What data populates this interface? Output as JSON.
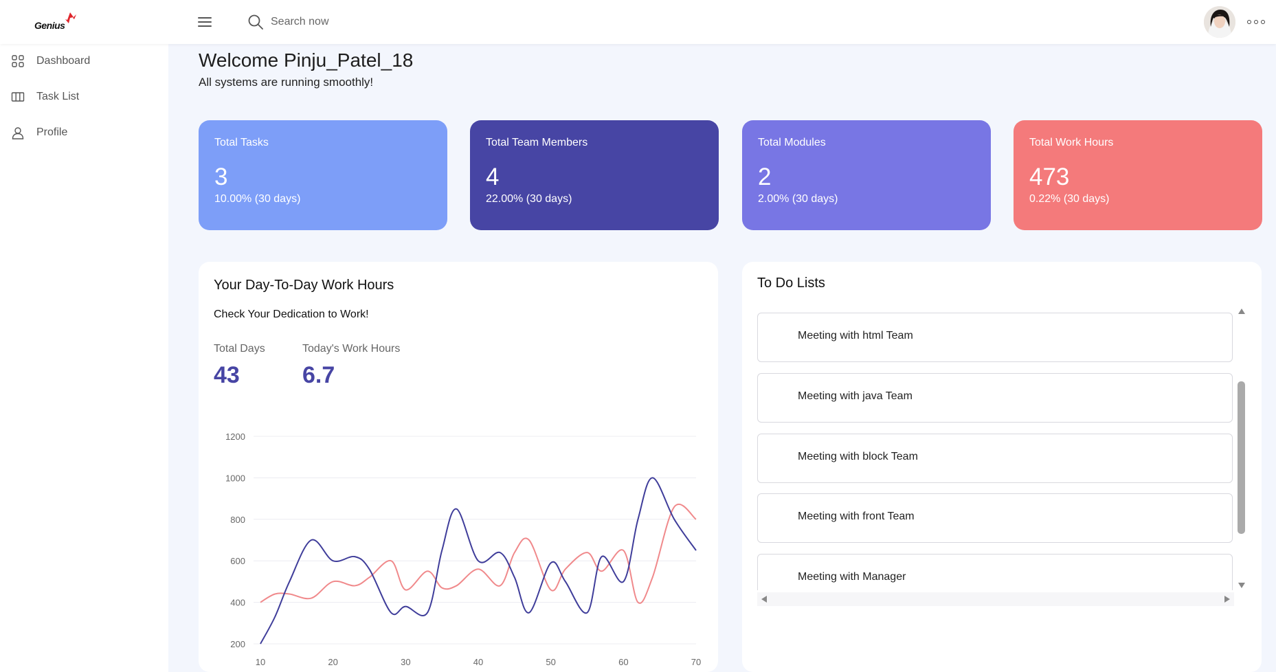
{
  "header": {
    "logo_text": "Genius",
    "search": {
      "placeholder": "Search now"
    }
  },
  "sidebar": {
    "items": [
      {
        "label": "Dashboard",
        "icon": "grid-icon"
      },
      {
        "label": "Task List",
        "icon": "columns-icon"
      },
      {
        "label": "Profile",
        "icon": "user-icon"
      }
    ]
  },
  "welcome": {
    "title": "Welcome Pinju_Patel_18",
    "subtitle": "All systems are running smoothly!"
  },
  "stats": [
    {
      "title": "Total Tasks",
      "value": "3",
      "change": "10.00% (30 days)",
      "color": "#7d9ef8"
    },
    {
      "title": "Total Team Members",
      "value": "4",
      "change": "22.00% (30 days)",
      "color": "#4745a4"
    },
    {
      "title": "Total Modules",
      "value": "2",
      "change": "2.00% (30 days)",
      "color": "#7876e4"
    },
    {
      "title": "Total Work Hours",
      "value": "473",
      "change": "0.22% (30 days)",
      "color": "#f47a7b"
    }
  ],
  "work_hours": {
    "title": "Your Day-To-Day Work Hours",
    "subtitle": "Check Your Dedication to Work!",
    "total_days_label": "Total Days",
    "total_days_value": "43",
    "today_label": "Today's Work Hours",
    "today_value": "6.7"
  },
  "chart_data": {
    "type": "line",
    "x": [
      10,
      12,
      14,
      17,
      20,
      23,
      25,
      28,
      30,
      33,
      35,
      37,
      40,
      43,
      45,
      47,
      50,
      52,
      55,
      57,
      60,
      62,
      64,
      67,
      70
    ],
    "series": [
      {
        "color": "#3f3d9a",
        "values": [
          200,
          330,
          500,
          700,
          600,
          620,
          560,
          350,
          380,
          350,
          650,
          850,
          600,
          640,
          520,
          350,
          590,
          500,
          350,
          620,
          500,
          800,
          1000,
          800,
          650
        ]
      },
      {
        "color": "#f0898b",
        "values": [
          400,
          440,
          440,
          420,
          500,
          480,
          520,
          600,
          460,
          550,
          470,
          480,
          560,
          480,
          640,
          700,
          460,
          560,
          640,
          550,
          650,
          400,
          520,
          860,
          800
        ]
      }
    ],
    "xlabel": "",
    "ylabel": "",
    "ylim": [
      200,
      1200
    ],
    "xlim": [
      10,
      70
    ],
    "y_ticks": [
      200,
      400,
      600,
      800,
      1000,
      1200
    ],
    "x_ticks": [
      10,
      20,
      30,
      40,
      50,
      60,
      70
    ],
    "grid": true
  },
  "todo": {
    "title": "To Do Lists",
    "items": [
      "Meeting with html Team",
      "Meeting with java Team",
      "Meeting with block Team",
      "Meeting with front Team",
      "Meeting with Manager"
    ]
  }
}
